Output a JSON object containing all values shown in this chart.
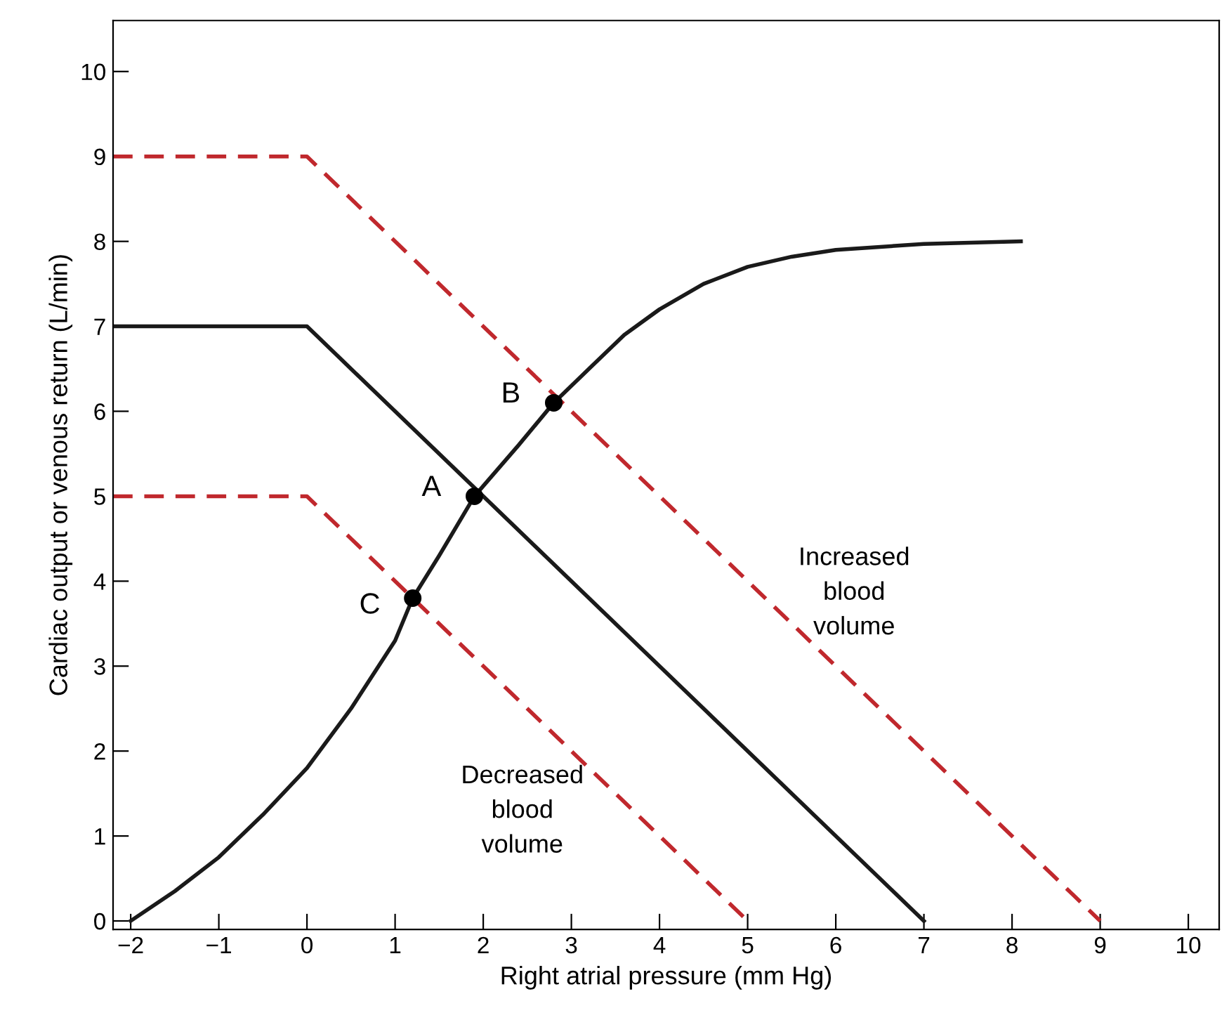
{
  "chart_data": {
    "type": "line",
    "xlabel": "Right atrial pressure (mm Hg)",
    "ylabel": "Cardiac output or venous return (L/min)",
    "xlim": [
      -2.2,
      10.35
    ],
    "ylim": [
      -0.1,
      10.6
    ],
    "xticks": [
      {
        "value": -2,
        "label": "−2"
      },
      {
        "value": -1,
        "label": "−1"
      },
      0,
      1,
      2,
      3,
      4,
      5,
      6,
      7,
      8,
      9,
      10
    ],
    "yticks": [
      0,
      1,
      2,
      3,
      4,
      5,
      6,
      7,
      8,
      9,
      10
    ],
    "grid": false,
    "legend": false,
    "series": [
      {
        "color": "#1a1a1a",
        "line_style": "solid",
        "x": [
          -2.2,
          0,
          7
        ],
        "values": [
          7,
          7,
          0
        ]
      },
      {
        "color": "#c0282d",
        "line_style": "dashed",
        "x": [
          -2.2,
          0,
          9
        ],
        "values": [
          9,
          9,
          0
        ]
      },
      {
        "color": "#c0282d",
        "line_style": "dashed",
        "x": [
          -2.2,
          0,
          5
        ],
        "values": [
          5,
          5,
          0
        ]
      },
      {
        "color": "#1a1a1a",
        "line_style": "solid",
        "x": [
          -2,
          -1.5,
          -1,
          -0.5,
          0,
          0.5,
          1,
          1.2,
          1.5,
          1.9,
          2.4,
          2.8,
          3.2,
          3.6,
          4,
          4.5,
          5,
          5.5,
          6,
          7,
          8.1
        ],
        "values": [
          0,
          0.35,
          0.75,
          1.25,
          1.8,
          2.5,
          3.3,
          3.8,
          4.3,
          5,
          5.6,
          6.1,
          6.5,
          6.9,
          7.2,
          7.5,
          7.7,
          7.82,
          7.9,
          7.97,
          8.0
        ]
      },
      {
        "type": "scatter",
        "marker": "circle",
        "color": "#000000",
        "x": [
          1.9,
          2.8,
          1.2
        ],
        "values": [
          5,
          6.1,
          3.8
        ]
      }
    ],
    "annotations": [
      {
        "text": "A",
        "x": 1.9,
        "y": 5
      },
      {
        "text": "B",
        "x": 2.8,
        "y": 6.1
      },
      {
        "text": "C",
        "x": 1.2,
        "y": 3.8
      },
      "Increased\nblood\nvolume",
      "Decreased\nblood\nvolume"
    ]
  }
}
